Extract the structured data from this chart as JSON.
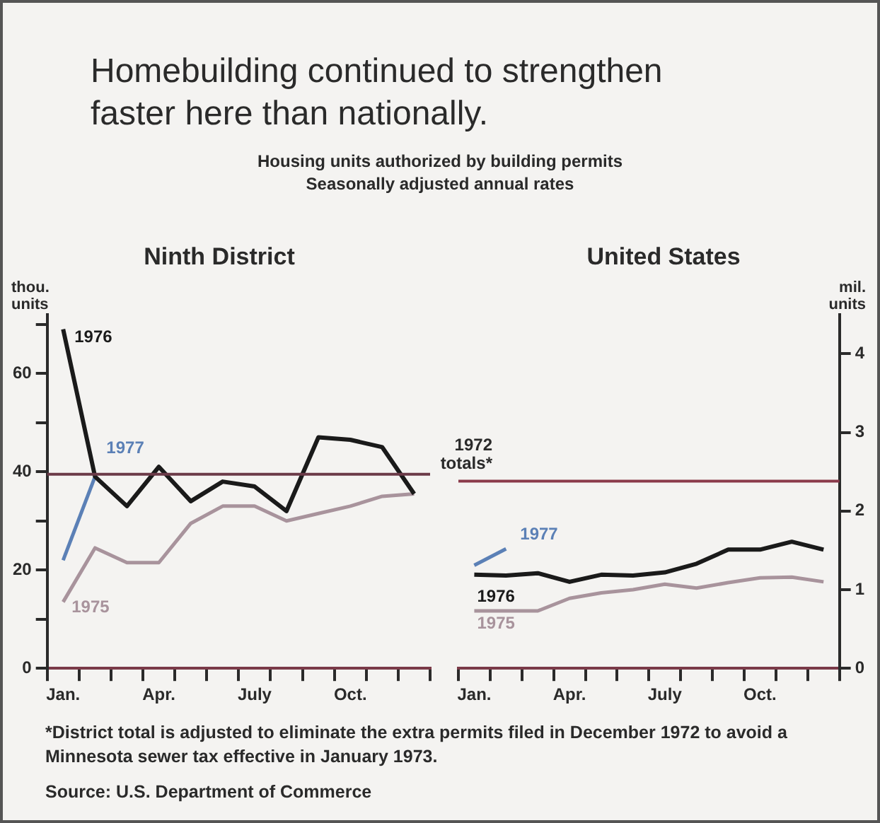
{
  "chart_data": [
    {
      "type": "line",
      "title": "Ninth District",
      "ylabel": "thou. units",
      "annotations": [
        "Homebuilding continued to strengthen faster here than nationally.",
        "Housing units authorized by building permits",
        "Seasonally adjusted annual rates"
      ],
      "categories": [
        "Jan.",
        null,
        null,
        "Apr.",
        null,
        null,
        "July",
        null,
        null,
        "Oct.",
        null,
        null
      ],
      "series": [
        {
          "name": "1976",
          "color": "#1a1a1a",
          "values": [
            69,
            39,
            33,
            41,
            34,
            38,
            37,
            32,
            47,
            46.5,
            45,
            35.5
          ]
        },
        {
          "name": "1975",
          "color": "#a8939c",
          "values": [
            13.5,
            24.5,
            21.5,
            21.5,
            29.5,
            33,
            33,
            30,
            31.5,
            33,
            35,
            35.5
          ]
        },
        {
          "name": "1977",
          "color": "#5b80b6",
          "values": [
            22,
            39,
            null,
            null,
            null,
            null,
            null,
            null,
            null,
            null,
            null,
            null
          ]
        }
      ],
      "ylim": [
        0,
        72
      ],
      "yticks": [
        0,
        {
          "value": 10,
          "label": null
        },
        20,
        {
          "value": 30,
          "label": null
        },
        40,
        {
          "value": 50,
          "label": null
        },
        60,
        {
          "value": 70,
          "label": null
        }
      ],
      "ref_lines": [
        {
          "axis": "y",
          "value": 39.5,
          "label": "1972 totals*",
          "color": "#6b3a48"
        }
      ],
      "grid": false,
      "legend": false
    },
    {
      "type": "line",
      "title": "United States",
      "ylabel": "mil. units",
      "annotations": [
        "*District total is adjusted to eliminate the extra permits filed in December 1972 to avoid a Minnesota sewer tax effective in January 1973.",
        "Source: U.S. Department of Commerce"
      ],
      "categories": [
        "Jan.",
        null,
        null,
        "Apr.",
        null,
        null,
        "July",
        null,
        null,
        "Oct.",
        null,
        null
      ],
      "series": [
        {
          "name": "1976",
          "color": "#1a1a1a",
          "values": [
            1.19,
            1.18,
            1.21,
            1.1,
            1.19,
            1.18,
            1.22,
            1.33,
            1.51,
            1.51,
            1.61,
            1.51
          ]
        },
        {
          "name": "1975",
          "color": "#a8939c",
          "values": [
            0.73,
            0.73,
            0.73,
            0.89,
            0.96,
            1.0,
            1.07,
            1.02,
            1.09,
            1.15,
            1.16,
            1.1
          ]
        },
        {
          "name": "1977",
          "color": "#5b80b6",
          "values": [
            1.31,
            1.52,
            null,
            null,
            null,
            null,
            null,
            null,
            null,
            null,
            null,
            null
          ]
        }
      ],
      "ylim": [
        0,
        4.5
      ],
      "yticks": [
        0,
        1,
        2,
        3,
        4
      ],
      "ref_lines": [
        {
          "axis": "y",
          "value": 2.38,
          "color": "#8a3a4a"
        }
      ],
      "grid": false,
      "legend": false
    }
  ]
}
